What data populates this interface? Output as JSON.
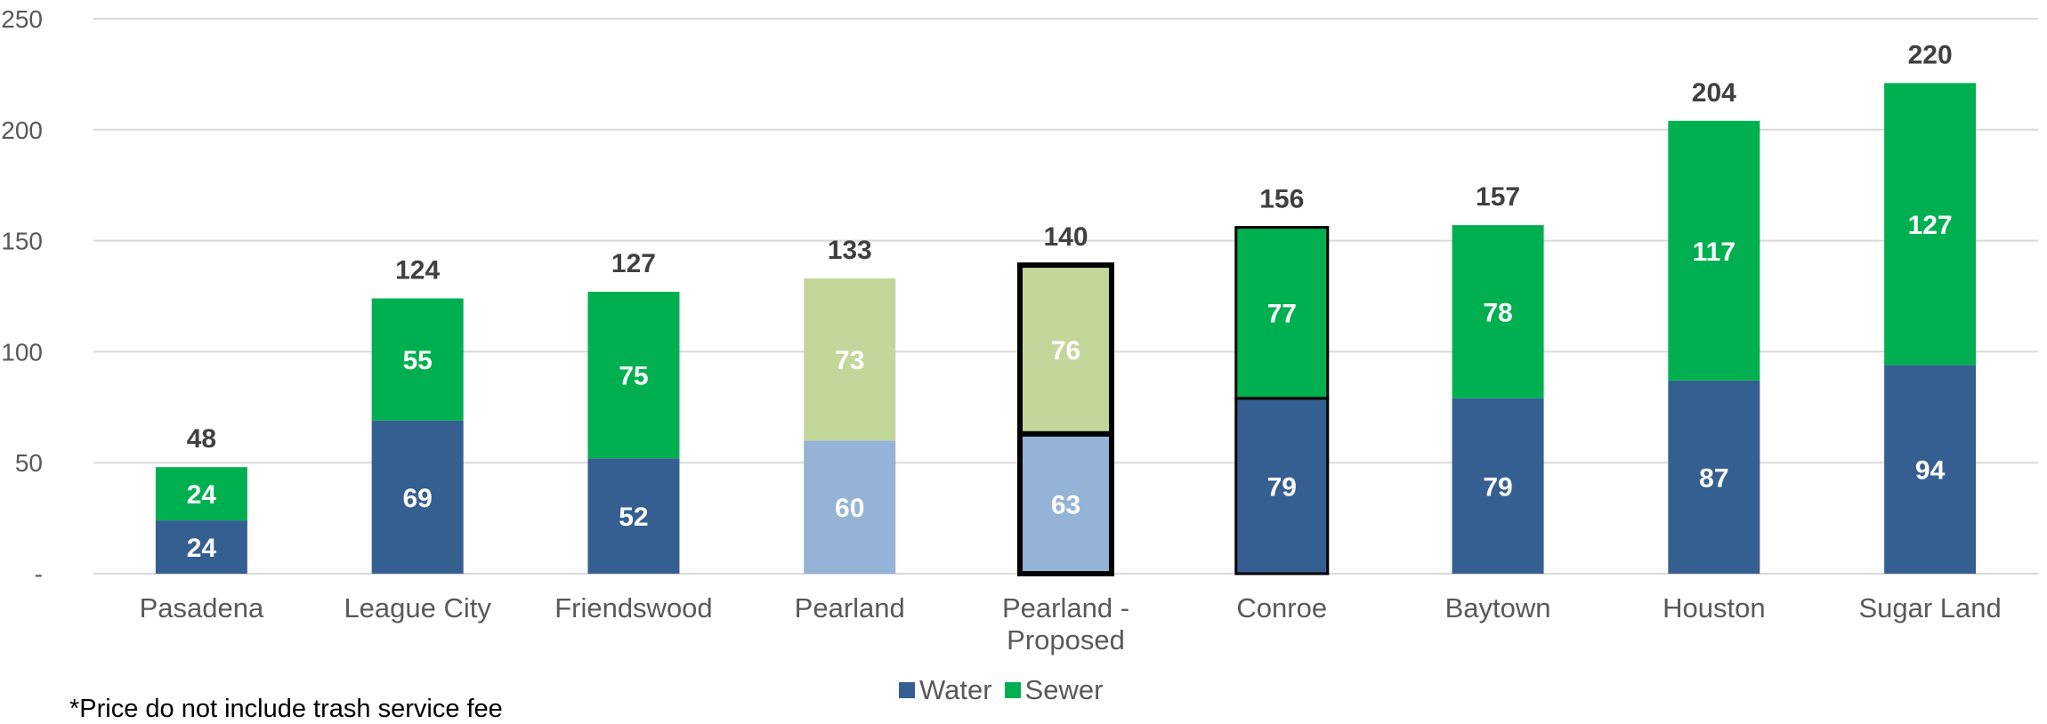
{
  "chart_data": {
    "type": "bar",
    "stacked": true,
    "categories": [
      "Pasadena",
      "League City",
      "Friendswood",
      "Pearland",
      "Pearland - Proposed",
      "Conroe",
      "Baytown",
      "Houston",
      "Sugar Land"
    ],
    "category_lines": [
      [
        "Pasadena"
      ],
      [
        "League City"
      ],
      [
        "Friendswood"
      ],
      [
        "Pearland"
      ],
      [
        "Pearland -",
        "Proposed"
      ],
      [
        "Conroe"
      ],
      [
        "Baytown"
      ],
      [
        "Houston"
      ],
      [
        "Sugar Land"
      ]
    ],
    "series": [
      {
        "name": "Water",
        "values": [
          24,
          69,
          52,
          60,
          63,
          79,
          79,
          87,
          94
        ]
      },
      {
        "name": "Sewer",
        "values": [
          24,
          55,
          75,
          73,
          76,
          77,
          78,
          117,
          127
        ]
      }
    ],
    "totals": [
      48,
      124,
      127,
      133,
      140,
      156,
      157,
      204,
      220
    ],
    "y_ticks": [
      "-",
      "50",
      "100",
      "150",
      "200",
      "250"
    ],
    "y_tick_values": [
      0,
      50,
      100,
      150,
      200,
      250
    ],
    "ylim": [
      0,
      250
    ],
    "grid": true,
    "legend_position": "bottom",
    "colors": {
      "water": "#365F91",
      "sewer": "#00B050",
      "water_light": "#95B3D7",
      "sewer_light": "#C4D79B",
      "gridline": "#D9D9D9",
      "outline": "#000000"
    },
    "highlight": {
      "light_fill_categories": [
        "Pearland",
        "Pearland - Proposed"
      ],
      "outlined_categories": [
        "Pearland - Proposed",
        "Conroe"
      ]
    }
  },
  "legend": {
    "water": "Water",
    "sewer": "Sewer"
  },
  "footnote": "*Price do not include trash service fee"
}
